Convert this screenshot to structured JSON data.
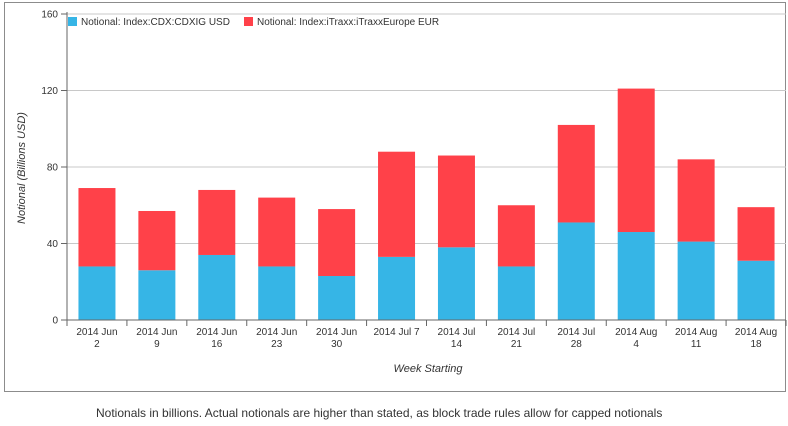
{
  "chart_data": {
    "type": "bar",
    "stacked": true,
    "categories": [
      [
        "2014 Jun",
        "2"
      ],
      [
        "2014 Jun",
        "9"
      ],
      [
        "2014 Jun",
        "16"
      ],
      [
        "2014 Jun",
        "23"
      ],
      [
        "2014 Jun",
        "30"
      ],
      [
        "2014 Jul 7"
      ],
      [
        "2014 Jul",
        "14"
      ],
      [
        "2014 Jul",
        "21"
      ],
      [
        "2014 Jul",
        "28"
      ],
      [
        "2014 Aug",
        "4"
      ],
      [
        "2014 Aug",
        "11"
      ],
      [
        "2014 Aug",
        "18"
      ]
    ],
    "series": [
      {
        "name": "Notional: Index:CDX:CDXIG USD",
        "color": "#36b5e6",
        "values": [
          28,
          26,
          34,
          28,
          23,
          33,
          38,
          28,
          51,
          46,
          41,
          31
        ]
      },
      {
        "name": "Notional: Index:iTraxx:iTraxxEurope EUR",
        "color": "#ff4149",
        "values": [
          41,
          31,
          34,
          36,
          35,
          55,
          48,
          32,
          51,
          75,
          43,
          28
        ]
      }
    ],
    "xlabel": "Week Starting",
    "ylabel": "Notional (Billions USD)",
    "ylim": [
      0,
      160
    ],
    "yticks": [
      0,
      40,
      80,
      120,
      160
    ],
    "grid": true,
    "legend": "top-left"
  },
  "caption": "Notionals in billions. Actual notionals are higher than stated, as block trade rules allow for capped notionals"
}
